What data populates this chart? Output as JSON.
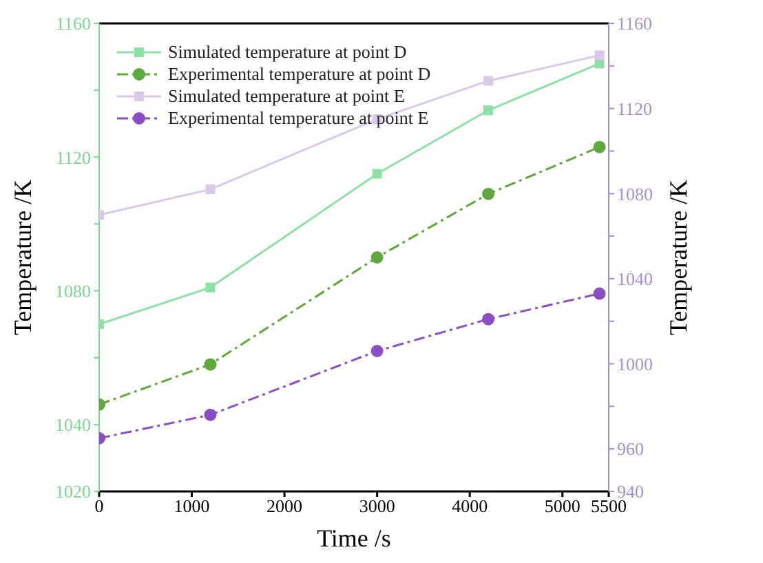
{
  "chart_data": {
    "type": "line",
    "xlabel": "Time /s",
    "ylabel": "Temperature /K",
    "y2label": "Temperature /K",
    "x": [
      0,
      1200,
      3000,
      4200,
      5400
    ],
    "series": [
      {
        "name": "Simulated temperature at point D",
        "color": "#8ee0a4",
        "values": [
          1070,
          1081,
          1115,
          1134,
          1148
        ],
        "marker": "square",
        "line_style": "solid"
      },
      {
        "name": "Experimental temperature at point D",
        "color": "#5ea83e",
        "values": [
          1046,
          1058,
          1090,
          1109,
          1123
        ],
        "marker": "circle",
        "line_style": "dashed"
      },
      {
        "name": "Simulated temperature at point E",
        "color": "#d9c8e8",
        "values": [
          1070,
          1082,
          1115,
          1133,
          1145
        ],
        "marker": "square",
        "line_style": "solid",
        "axis": "y2"
      },
      {
        "name": "Experimental temperature at point E",
        "color": "#8a4fc2",
        "values": [
          965,
          976,
          1006,
          1021,
          1033
        ],
        "marker": "circle",
        "line_style": "dashed",
        "axis": "y2"
      }
    ],
    "xlim": [
      0,
      5500
    ],
    "xticks": [
      0,
      1000,
      2000,
      3000,
      4000,
      5000,
      5500
    ],
    "ylim": [
      1020,
      1160
    ],
    "yticks": [
      1020,
      1040,
      {
        "value": 1060,
        "label": null
      },
      1080,
      {
        "value": 1100,
        "label": null
      },
      1120,
      {
        "value": 1140,
        "label": null
      },
      1160
    ],
    "y2lim": [
      940,
      1160
    ],
    "y2ticks": [
      940,
      960,
      {
        "value": 980,
        "label": null
      },
      1000,
      {
        "value": 1020,
        "label": null
      },
      1040,
      {
        "value": 1060,
        "label": null
      },
      1080,
      {
        "value": 1100,
        "label": null
      },
      1120,
      {
        "value": 1140,
        "label": null
      },
      1160
    ],
    "grid": false,
    "legend": "top left"
  }
}
